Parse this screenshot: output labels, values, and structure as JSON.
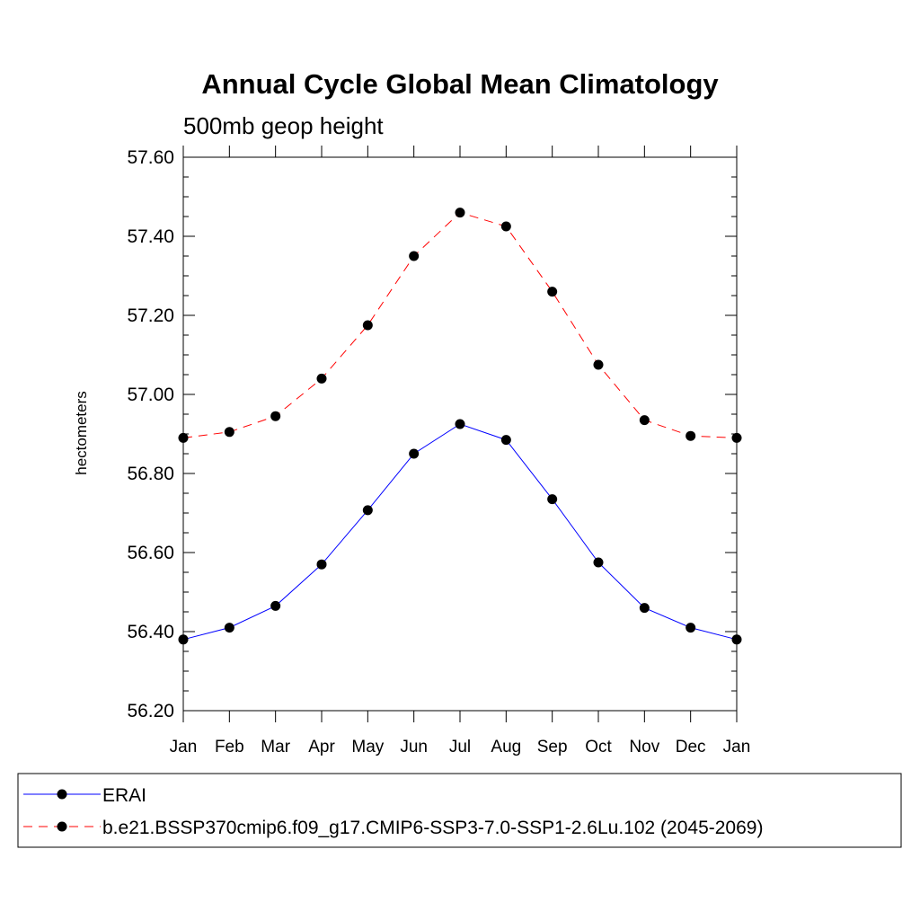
{
  "chart_data": {
    "type": "line",
    "title": "Annual Cycle Global Mean Climatology",
    "subtitle": "500mb geop height",
    "ylabel": "hectometers",
    "xlabel": "",
    "categories": [
      "Jan",
      "Feb",
      "Mar",
      "Apr",
      "May",
      "Jun",
      "Jul",
      "Aug",
      "Sep",
      "Oct",
      "Nov",
      "Dec",
      "Jan"
    ],
    "ylim": [
      56.2,
      57.6
    ],
    "yticks": [
      56.2,
      56.4,
      56.6,
      56.8,
      57.0,
      57.2,
      57.4,
      57.6
    ],
    "ytick_labels": [
      "56.20",
      "56.40",
      "56.60",
      "56.80",
      "57.00",
      "57.20",
      "57.40",
      "57.60"
    ],
    "grid": false,
    "legend_position": "bottom",
    "series": [
      {
        "name": "ERAI",
        "color": "#0000ff",
        "line_style": "solid",
        "marker": "filled-circle",
        "values": [
          56.38,
          56.41,
          56.465,
          56.57,
          56.707,
          56.85,
          56.925,
          56.885,
          56.735,
          56.575,
          56.46,
          56.41,
          56.38
        ]
      },
      {
        "name": "b.e21.BSSP370cmip6.f09_g17.CMIP6-SSP3-7.0-SSP1-2.6Lu.102 (2045-2069)",
        "color": "#ff0000",
        "line_style": "dashed",
        "marker": "filled-circle",
        "values": [
          56.89,
          56.905,
          56.945,
          57.04,
          57.175,
          57.35,
          57.46,
          57.425,
          57.26,
          57.075,
          56.935,
          56.895,
          56.89
        ]
      }
    ]
  }
}
